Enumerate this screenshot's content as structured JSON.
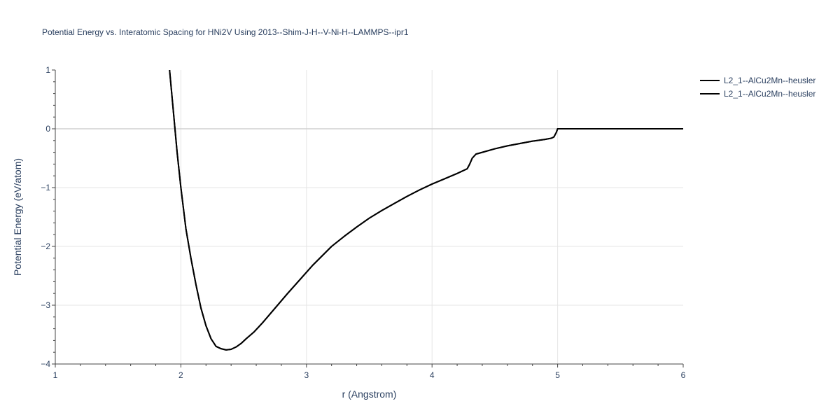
{
  "chart_data": {
    "type": "line",
    "title": "Potential Energy vs. Interatomic Spacing for HNi2V Using 2013--Shim-J-H--V-Ni-H--LAMMPS--ipr1",
    "xlabel": "r (Angstrom)",
    "ylabel": "Potential Energy (eV/atom)",
    "xlim": [
      1,
      6
    ],
    "ylim": [
      -4,
      1
    ],
    "x_ticks": [
      1,
      2,
      3,
      4,
      5,
      6
    ],
    "x_tick_labels": [
      "1",
      "2",
      "3",
      "4",
      "5",
      "6"
    ],
    "y_ticks": [
      -4,
      -3,
      -2,
      -1,
      0,
      1
    ],
    "y_tick_labels": [
      "−4",
      "−3",
      "−2",
      "−1",
      "0",
      "1"
    ],
    "grid": true,
    "legend_position": "top-right",
    "series": [
      {
        "name": "L2_1--AlCu2Mn--heusler",
        "color": "#000000",
        "x": [
          1.91,
          1.94,
          1.97,
          2.0,
          2.04,
          2.08,
          2.12,
          2.16,
          2.2,
          2.24,
          2.28,
          2.32,
          2.36,
          2.4,
          2.44,
          2.48,
          2.52,
          2.58,
          2.65,
          2.75,
          2.85,
          2.95,
          3.05,
          3.2,
          3.3,
          3.4,
          3.5,
          3.6,
          3.7,
          3.8,
          3.9,
          4.0,
          4.1,
          4.2,
          4.28,
          4.3,
          4.32,
          4.35,
          4.4,
          4.5,
          4.6,
          4.7,
          4.8,
          4.9,
          4.95,
          4.97,
          4.99,
          5.0,
          5.2,
          5.5,
          6.0
        ],
        "y": [
          1.0,
          0.3,
          -0.4,
          -1.0,
          -1.7,
          -2.2,
          -2.65,
          -3.05,
          -3.35,
          -3.57,
          -3.7,
          -3.74,
          -3.76,
          -3.75,
          -3.71,
          -3.65,
          -3.57,
          -3.46,
          -3.3,
          -3.05,
          -2.8,
          -2.56,
          -2.32,
          -2.0,
          -1.83,
          -1.67,
          -1.52,
          -1.39,
          -1.27,
          -1.15,
          -1.04,
          -0.94,
          -0.85,
          -0.76,
          -0.68,
          -0.6,
          -0.5,
          -0.43,
          -0.4,
          -0.34,
          -0.29,
          -0.25,
          -0.21,
          -0.18,
          -0.16,
          -0.14,
          -0.06,
          0.0,
          0.0,
          0.0,
          0.0
        ]
      },
      {
        "name": "L2_1--AlCu2Mn--heusler",
        "color": "#000000",
        "x": [
          1.91,
          1.94,
          1.97,
          2.0,
          2.04,
          2.08,
          2.12,
          2.16,
          2.2,
          2.24,
          2.28,
          2.32,
          2.36,
          2.4,
          2.44,
          2.48,
          2.52,
          2.58,
          2.65,
          2.75,
          2.85,
          2.95,
          3.05,
          3.2,
          3.3,
          3.4,
          3.5,
          3.6,
          3.7,
          3.8,
          3.9,
          4.0,
          4.1,
          4.2,
          4.28,
          4.3,
          4.32,
          4.35,
          4.4,
          4.5,
          4.6,
          4.7,
          4.8,
          4.9,
          4.95,
          4.97,
          4.99,
          5.0,
          5.2,
          5.5,
          6.0
        ],
        "y": [
          1.0,
          0.3,
          -0.4,
          -1.0,
          -1.7,
          -2.2,
          -2.65,
          -3.05,
          -3.35,
          -3.57,
          -3.7,
          -3.74,
          -3.76,
          -3.75,
          -3.71,
          -3.65,
          -3.57,
          -3.46,
          -3.3,
          -3.05,
          -2.8,
          -2.56,
          -2.32,
          -2.0,
          -1.83,
          -1.67,
          -1.52,
          -1.39,
          -1.27,
          -1.15,
          -1.04,
          -0.94,
          -0.85,
          -0.76,
          -0.68,
          -0.6,
          -0.5,
          -0.43,
          -0.4,
          -0.34,
          -0.29,
          -0.25,
          -0.21,
          -0.18,
          -0.16,
          -0.14,
          -0.06,
          0.0,
          0.0,
          0.0,
          0.0
        ]
      }
    ]
  }
}
